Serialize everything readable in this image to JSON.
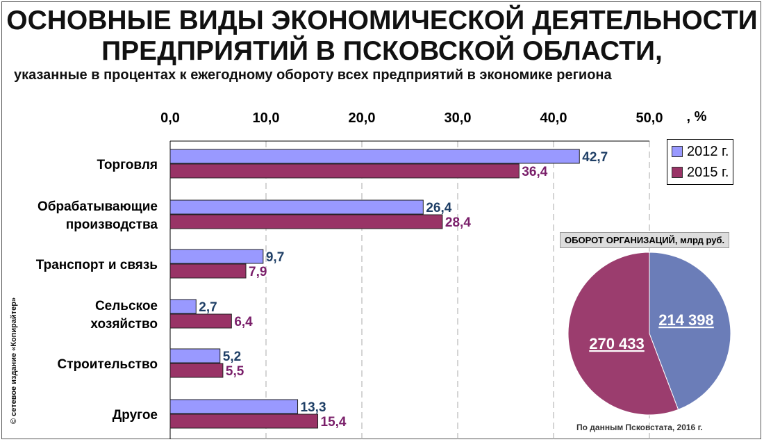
{
  "title_line1": "ОСНОВНЫЕ ВИДЫ ЭКОНОМИЧЕСКОЙ ДЕЯТЕЛЬНОСТИ",
  "title_line2": "ПРЕДПРИЯТИЙ В ПСКОВСКОЙ ОБЛАСТИ,",
  "subtitle": "указанные в процентах к ежегодному обороту всех предприятий в экономике региона",
  "copyright": "© сетевое издание «Копирайтер»",
  "source": "По данным Псковстата, 2016 г.",
  "colors": {
    "s2012": "#9999ff",
    "s2015": "#993366",
    "label2012": "#1f3f66",
    "label2015": "#7a1f6a",
    "pie2012": "#6b7db8",
    "pie2015": "#9b3d6e"
  },
  "chart_data": [
    {
      "type": "bar",
      "orientation": "horizontal",
      "xlim": [
        0,
        50
      ],
      "ticks": [
        "0,0",
        "10,0",
        "20,0",
        "30,0",
        "40,0",
        "50,0"
      ],
      "unit": ", %",
      "grid": true,
      "legend": "top-right",
      "categories": [
        "Торговля",
        "Обрабатывающие производства",
        "Транспорт и связь",
        "Сельское хозяйство",
        "Строительство",
        "Другое"
      ],
      "series": [
        {
          "name": "2012 г.",
          "values": [
            42.7,
            26.4,
            9.7,
            2.7,
            5.2,
            13.3
          ],
          "labels": [
            "42,7",
            "26,4",
            "9,7",
            "2,7",
            "5,2",
            "13,3"
          ]
        },
        {
          "name": "2015 г.",
          "values": [
            36.4,
            28.4,
            7.9,
            6.4,
            5.5,
            15.4
          ],
          "labels": [
            "36,4",
            "28,4",
            "7,9",
            "6,4",
            "5,5",
            "15,4"
          ]
        }
      ]
    },
    {
      "type": "pie",
      "title": "ОБОРОТ ОРГАНИЗАЦИЙ, млрд руб.",
      "slices": [
        {
          "series": "2012 г.",
          "value": 214398,
          "label": "214 398"
        },
        {
          "series": "2015 г.",
          "value": 270433,
          "label": "270 433"
        }
      ]
    }
  ]
}
